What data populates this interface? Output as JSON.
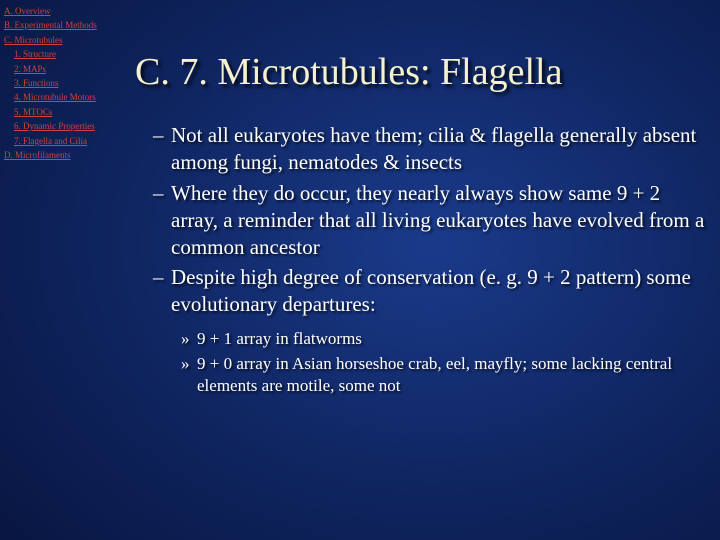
{
  "sidebar": {
    "items": [
      {
        "label": "A. Overview",
        "indent": false
      },
      {
        "label": "B. Experimental Methods",
        "indent": false
      },
      {
        "label": "C. Microtubules",
        "indent": false
      },
      {
        "label": "1. Structure",
        "indent": true
      },
      {
        "label": "2. MAPs",
        "indent": true
      },
      {
        "label": "3. Functions",
        "indent": true
      },
      {
        "label": "4. Microtubule Motors",
        "indent": true
      },
      {
        "label": "5. MTOCs",
        "indent": true
      },
      {
        "label": "6. Dynamic Properties",
        "indent": true
      },
      {
        "label": "7. Flagella and Cilia",
        "indent": true
      },
      {
        "label": "D. Microfilaments",
        "indent": false
      }
    ]
  },
  "slide": {
    "title": "C. 7. Microtubules: Flagella",
    "bullets": [
      "Not all eukaryotes have them; cilia & flagella generally absent among fungi, nematodes & insects",
      "Where they do occur, they nearly always show same 9 + 2 array, a reminder that all living eukaryotes have evolved from a common ancestor",
      "Despite high degree of conservation (e. g. 9 + 2 pattern) some evolutionary departures:"
    ],
    "sub": [
      "9 + 1 array in flatworms",
      "9 + 0 array in  Asian horseshoe crab, eel, mayfly; some lacking central elements are motile, some not"
    ]
  },
  "colors": {
    "link": "#d04040",
    "title": "#f5f0d0",
    "text": "#ffffff"
  }
}
